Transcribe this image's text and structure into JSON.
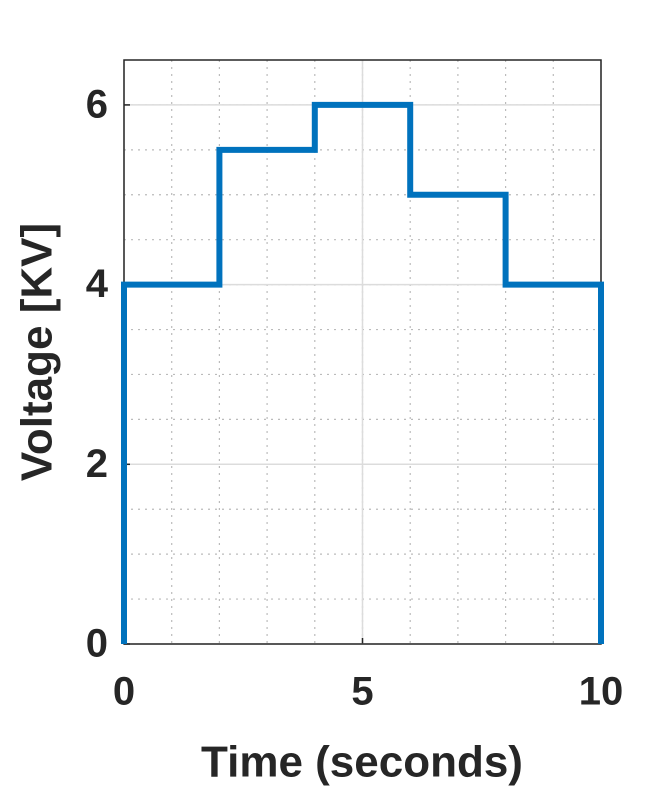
{
  "chart_data": {
    "type": "line",
    "xlabel": "Time (seconds)",
    "ylabel": "Voltage [KV]",
    "series": [
      {
        "color": "#0072bd",
        "x": [
          0,
          0,
          2,
          2,
          4,
          4,
          6,
          6,
          8,
          8,
          10,
          10
        ],
        "values": [
          0,
          4,
          4,
          5.5,
          5.5,
          6,
          6,
          5,
          5,
          4,
          4,
          0
        ]
      }
    ],
    "xlim": [
      0,
      10
    ],
    "xticks": [
      0,
      5,
      10
    ],
    "ylim": [
      0,
      6.5
    ],
    "yticks": [
      0,
      2,
      4,
      6
    ],
    "grid": true,
    "minor_grid": true
  }
}
